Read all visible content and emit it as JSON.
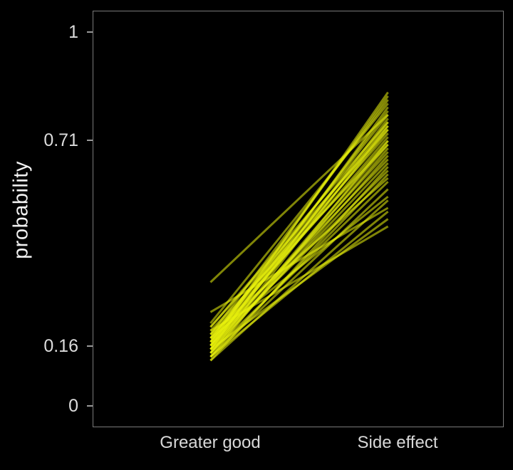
{
  "chart_data": {
    "type": "line",
    "subtype": "slope-paired-lines",
    "title": "",
    "ylabel": "probability",
    "xlabel": "",
    "categories": [
      "Greater good",
      "Side effect"
    ],
    "ylim": [
      0,
      1
    ],
    "yticks": [
      {
        "value": 1,
        "label": "1"
      },
      {
        "value": 0.71,
        "label": "0.71"
      },
      {
        "value": 0.16,
        "label": "0.16"
      },
      {
        "value": 0,
        "label": "0"
      }
    ],
    "grid": false,
    "legend": "none",
    "background": "#000000",
    "line_color": "#e9f20c",
    "line_opacity": 0.55,
    "pairs": [
      [
        0.13,
        0.62
      ],
      [
        0.14,
        0.75
      ],
      [
        0.15,
        0.8
      ],
      [
        0.16,
        0.68
      ],
      [
        0.17,
        0.72
      ],
      [
        0.12,
        0.55
      ],
      [
        0.18,
        0.78
      ],
      [
        0.19,
        0.82
      ],
      [
        0.2,
        0.7
      ],
      [
        0.15,
        0.65
      ],
      [
        0.14,
        0.6
      ],
      [
        0.16,
        0.74
      ],
      [
        0.17,
        0.66
      ],
      [
        0.13,
        0.58
      ],
      [
        0.18,
        0.71
      ],
      [
        0.21,
        0.76
      ],
      [
        0.16,
        0.84
      ],
      [
        0.15,
        0.77
      ],
      [
        0.14,
        0.69
      ],
      [
        0.17,
        0.79
      ],
      [
        0.19,
        0.73
      ],
      [
        0.13,
        0.52
      ],
      [
        0.22,
        0.81
      ],
      [
        0.16,
        0.63
      ],
      [
        0.18,
        0.75
      ],
      [
        0.15,
        0.7
      ],
      [
        0.2,
        0.48
      ],
      [
        0.33,
        0.78
      ],
      [
        0.12,
        0.64
      ],
      [
        0.17,
        0.83
      ],
      [
        0.14,
        0.67
      ],
      [
        0.19,
        0.61
      ],
      [
        0.16,
        0.76
      ],
      [
        0.13,
        0.71
      ],
      [
        0.18,
        0.56
      ],
      [
        0.21,
        0.74
      ],
      [
        0.15,
        0.5
      ],
      [
        0.25,
        0.53
      ]
    ]
  }
}
